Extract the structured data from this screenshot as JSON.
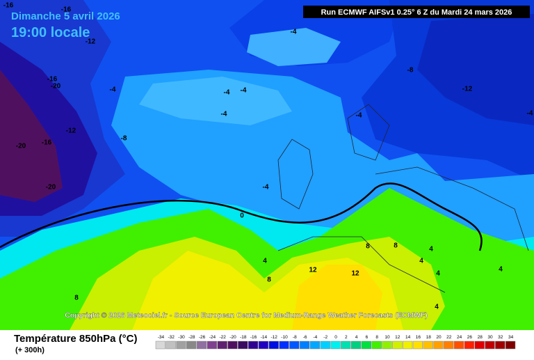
{
  "header": {
    "date": "Dimanche 5 avril 2026",
    "time": "19:00 locale",
    "run": "Run ECMWF AIFSv1 0.25° 6 Z du Mardi 24 mars 2026"
  },
  "map": {
    "contour_labels": [
      -16,
      -16,
      -12,
      -4,
      -8,
      -16,
      -20,
      -4,
      -4,
      -4,
      -12,
      -4,
      -4,
      -4,
      -12,
      -8,
      -20,
      -16,
      -20,
      -4,
      0,
      8,
      8,
      4,
      4,
      4,
      12,
      12,
      4,
      4,
      8,
      8,
      4
    ],
    "copyright": "Copyright © 2026 Meteociel.fr - Source European Centre for Medium-Range Weather Forecasts (ECMWF)"
  },
  "legend": {
    "title": "Température 850hPa (°C)",
    "lead": "(+ 300h)",
    "ticks": [
      -34,
      -32,
      -30,
      -28,
      -26,
      -24,
      -22,
      -20,
      -18,
      -16,
      -14,
      -12,
      -10,
      -8,
      -6,
      -4,
      -2,
      0,
      2,
      4,
      6,
      8,
      10,
      12,
      14,
      16,
      18,
      20,
      22,
      24,
      26,
      28,
      30,
      32,
      34
    ],
    "colors": [
      "#d8d8d8",
      "#c0c0c0",
      "#a0a0a0",
      "#888888",
      "#9070a0",
      "#804090",
      "#602070",
      "#501060",
      "#3a0a60",
      "#300090",
      "#2000c0",
      "#0010e0",
      "#0030ff",
      "#0058ff",
      "#0080ff",
      "#00a8ff",
      "#00d0ff",
      "#00f0f0",
      "#00e0b0",
      "#00d080",
      "#00e040",
      "#40f000",
      "#90f000",
      "#d0f000",
      "#f0f000",
      "#ffe000",
      "#ffc000",
      "#ffa000",
      "#ff8000",
      "#ff5000",
      "#ff2000",
      "#e00000",
      "#c00000",
      "#a00000",
      "#800000"
    ]
  }
}
